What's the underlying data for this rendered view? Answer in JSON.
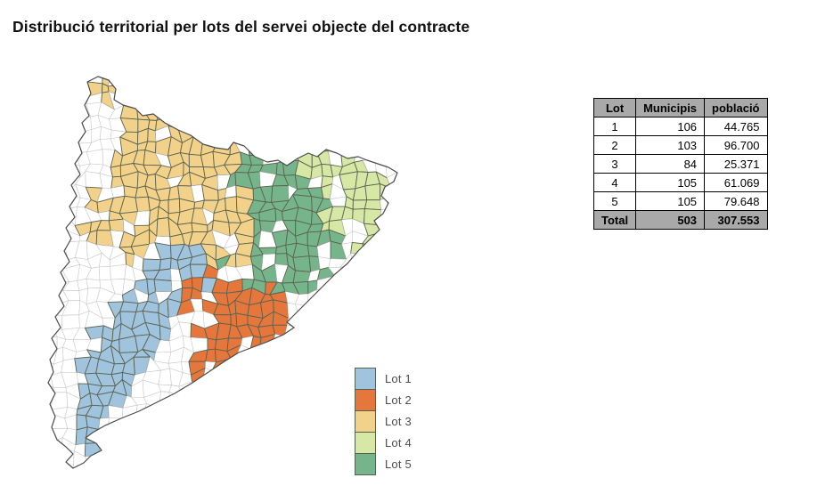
{
  "page": {
    "title": "Distribució territorial per lots del servei objecte del contracte"
  },
  "legend": {
    "items": [
      {
        "label": "Lot 1",
        "color": "#a0c4dd"
      },
      {
        "label": "Lot 2",
        "color": "#e5763c"
      },
      {
        "label": "Lot 3",
        "color": "#f2d28a"
      },
      {
        "label": "Lot 4",
        "color": "#d7e8a6"
      },
      {
        "label": "Lot 5",
        "color": "#76b48b"
      }
    ],
    "swatch_border_color": "#55614f"
  },
  "table": {
    "headers": [
      "Lot",
      "Municipis",
      "població"
    ],
    "rows": [
      {
        "lot": "1",
        "municipis": "106",
        "poblacio": "44.765"
      },
      {
        "lot": "2",
        "municipis": "103",
        "poblacio": "96.700"
      },
      {
        "lot": "3",
        "municipis": "84",
        "poblacio": "25.371"
      },
      {
        "lot": "4",
        "municipis": "105",
        "poblacio": "61.069"
      },
      {
        "lot": "5",
        "municipis": "105",
        "poblacio": "79.648"
      }
    ],
    "total": {
      "lot": "Total",
      "municipis": "503",
      "poblacio": "307.553"
    },
    "header_bg": "#a9a9a9",
    "border_color": "#000000"
  },
  "map": {
    "outline_color": "#4b4b4b",
    "uncolored_cell_fill": "#ffffff",
    "uncolored_cell_border": "#c6c6c6",
    "colored_cell_border": "#5c6350"
  }
}
